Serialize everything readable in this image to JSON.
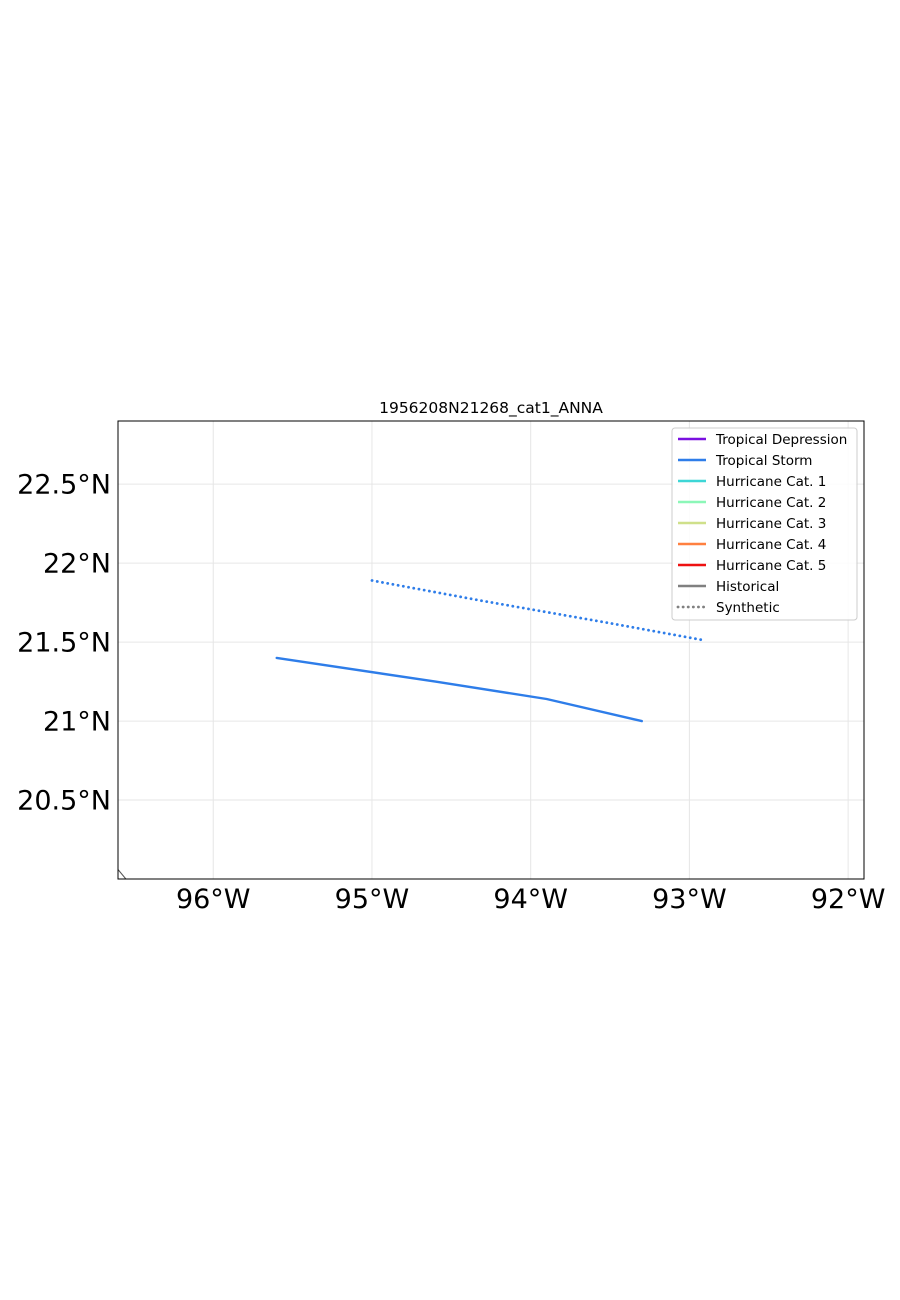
{
  "title": "1956208N21268_cat1_ANNA",
  "chart_data": {
    "type": "line",
    "map_extent": {
      "lon": [
        -96.6,
        -91.9
      ],
      "lat": [
        20.0,
        22.9
      ]
    },
    "gridlines": true,
    "legend_placement": "top-right",
    "x_ticks": [
      {
        "lon": -96,
        "label": "96°W"
      },
      {
        "lon": -95,
        "label": "95°W"
      },
      {
        "lon": -94,
        "label": "94°W"
      },
      {
        "lon": -93,
        "label": "93°W"
      },
      {
        "lon": -92,
        "label": "92°W"
      }
    ],
    "y_ticks": [
      {
        "lat": 20.5,
        "label": "20.5°N"
      },
      {
        "lat": 21.0,
        "label": "21°N"
      },
      {
        "lat": 21.5,
        "label": "21.5°N"
      },
      {
        "lat": 22.0,
        "label": "22°N"
      },
      {
        "lat": 22.5,
        "label": "22.5°N"
      }
    ],
    "series": [
      {
        "name": "Historical",
        "category": "Tropical Storm",
        "style": "solid",
        "color": "#2e7de9",
        "points": [
          {
            "lon": -95.6,
            "lat": 21.4
          },
          {
            "lon": -94.6,
            "lat": 21.25
          },
          {
            "lon": -93.9,
            "lat": 21.14
          },
          {
            "lon": -93.3,
            "lat": 21.0
          }
        ]
      },
      {
        "name": "Synthetic",
        "category": "Tropical Storm",
        "style": "dotted",
        "color": "#2e7de9",
        "points": [
          {
            "lon": -95.0,
            "lat": 21.89
          },
          {
            "lon": -94.3,
            "lat": 21.76
          },
          {
            "lon": -93.5,
            "lat": 21.62
          },
          {
            "lon": -92.9,
            "lat": 21.51
          }
        ]
      }
    ],
    "coastline": [
      {
        "lon": -96.6,
        "lat": 20.06
      },
      {
        "lon": -96.55,
        "lat": 20.0
      }
    ],
    "legend": [
      {
        "label": "Tropical Depression",
        "color": "#7a10e0",
        "style": "solid"
      },
      {
        "label": "Tropical Storm",
        "color": "#2e7de9",
        "style": "solid"
      },
      {
        "label": "Hurricane Cat. 1",
        "color": "#3dd6d6",
        "style": "solid"
      },
      {
        "label": "Hurricane Cat. 2",
        "color": "#8cf7b8",
        "style": "solid"
      },
      {
        "label": "Hurricane Cat. 3",
        "color": "#cfe08a",
        "style": "solid"
      },
      {
        "label": "Hurricane Cat. 4",
        "color": "#ff8040",
        "style": "solid"
      },
      {
        "label": "Hurricane Cat. 5",
        "color": "#ee1111",
        "style": "solid"
      },
      {
        "label": "Historical",
        "color": "#808080",
        "style": "solid"
      },
      {
        "label": "Synthetic",
        "color": "#808080",
        "style": "dotted"
      }
    ]
  }
}
